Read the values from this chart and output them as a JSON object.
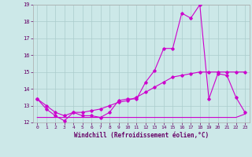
{
  "xlabel": "Windchill (Refroidissement éolien,°C)",
  "bg_color": "#cce8e8",
  "line_color": "#cc00cc",
  "grid_color": "#aacccc",
  "x_values": [
    0,
    1,
    2,
    3,
    4,
    5,
    6,
    7,
    8,
    9,
    10,
    11,
    12,
    13,
    14,
    15,
    16,
    17,
    18,
    19,
    20,
    21,
    22,
    23
  ],
  "line1": [
    13.4,
    12.8,
    12.4,
    12.1,
    12.6,
    12.4,
    12.4,
    12.3,
    12.6,
    13.3,
    13.4,
    13.4,
    14.4,
    15.1,
    16.4,
    16.4,
    18.5,
    18.2,
    19.0,
    13.4,
    14.9,
    14.8,
    13.5,
    12.6
  ],
  "line2": [
    13.4,
    13.0,
    12.6,
    12.4,
    12.6,
    12.6,
    12.7,
    12.8,
    13.0,
    13.2,
    13.3,
    13.5,
    13.8,
    14.1,
    14.4,
    14.7,
    14.8,
    14.9,
    15.0,
    15.0,
    15.0,
    15.0,
    15.0,
    15.0
  ],
  "line3": [
    12.3,
    12.3,
    12.3,
    12.3,
    12.3,
    12.3,
    12.3,
    12.3,
    12.3,
    12.3,
    12.3,
    12.3,
    12.3,
    12.3,
    12.3,
    12.3,
    12.3,
    12.3,
    12.3,
    12.3,
    12.3,
    12.3,
    12.3,
    12.5
  ],
  "ylim": [
    12.0,
    19.0
  ],
  "xlim": [
    -0.5,
    23.5
  ],
  "yticks": [
    12,
    13,
    14,
    15,
    16,
    17,
    18,
    19
  ],
  "xticks": [
    0,
    1,
    2,
    3,
    4,
    5,
    6,
    7,
    8,
    9,
    10,
    11,
    12,
    13,
    14,
    15,
    16,
    17,
    18,
    19,
    20,
    21,
    22,
    23
  ]
}
